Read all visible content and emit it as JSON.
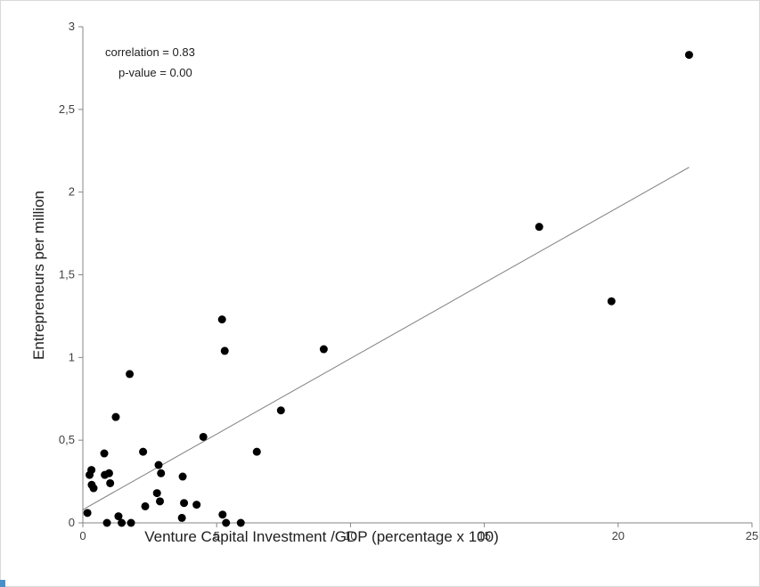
{
  "chart_data": {
    "type": "scatter",
    "title": "",
    "xlabel": "Venture Capital Investment /GDP (percentage x 100)",
    "ylabel": "Entrepreneurs per million",
    "xlim": [
      0,
      25
    ],
    "ylim": [
      0,
      3
    ],
    "x_ticks": [
      0,
      5,
      10,
      15,
      20,
      25
    ],
    "y_ticks": [
      0,
      0.5,
      1,
      1.5,
      2,
      2.5,
      3
    ],
    "x_tick_labels": [
      "0",
      "5",
      "10",
      "15",
      "20",
      "25"
    ],
    "y_tick_labels": [
      "0",
      "0,5",
      "1",
      "1,5",
      "2",
      "2,5",
      "3"
    ],
    "grid": false,
    "annotations": [
      "correlation =  0.83",
      "p-value = 0.00"
    ],
    "points": [
      {
        "x": 0.17,
        "y": 0.06
      },
      {
        "x": 0.25,
        "y": 0.29
      },
      {
        "x": 0.32,
        "y": 0.32
      },
      {
        "x": 0.33,
        "y": 0.23
      },
      {
        "x": 0.4,
        "y": 0.21
      },
      {
        "x": 0.8,
        "y": 0.42
      },
      {
        "x": 0.82,
        "y": 0.29
      },
      {
        "x": 0.9,
        "y": 0.0
      },
      {
        "x": 0.98,
        "y": 0.3
      },
      {
        "x": 1.02,
        "y": 0.24
      },
      {
        "x": 1.23,
        "y": 0.64
      },
      {
        "x": 1.33,
        "y": 0.04
      },
      {
        "x": 1.45,
        "y": 0.0
      },
      {
        "x": 1.75,
        "y": 0.9
      },
      {
        "x": 1.8,
        "y": 0.0
      },
      {
        "x": 2.25,
        "y": 0.43
      },
      {
        "x": 2.33,
        "y": 0.1
      },
      {
        "x": 2.77,
        "y": 0.18
      },
      {
        "x": 2.83,
        "y": 0.35
      },
      {
        "x": 2.88,
        "y": 0.13
      },
      {
        "x": 2.92,
        "y": 0.3
      },
      {
        "x": 3.7,
        "y": 0.03
      },
      {
        "x": 3.73,
        "y": 0.28
      },
      {
        "x": 3.78,
        "y": 0.12
      },
      {
        "x": 4.25,
        "y": 0.11
      },
      {
        "x": 4.5,
        "y": 0.52
      },
      {
        "x": 5.2,
        "y": 1.23
      },
      {
        "x": 5.22,
        "y": 0.05
      },
      {
        "x": 5.3,
        "y": 1.04
      },
      {
        "x": 5.35,
        "y": 0.0
      },
      {
        "x": 5.9,
        "y": 0.0
      },
      {
        "x": 6.5,
        "y": 0.43
      },
      {
        "x": 7.4,
        "y": 0.68
      },
      {
        "x": 9.0,
        "y": 1.05
      },
      {
        "x": 17.05,
        "y": 1.79
      },
      {
        "x": 19.75,
        "y": 1.34
      },
      {
        "x": 22.65,
        "y": 2.83
      }
    ],
    "trendline": {
      "x": [
        0,
        22.65
      ],
      "y": [
        0.08,
        2.15
      ]
    }
  }
}
